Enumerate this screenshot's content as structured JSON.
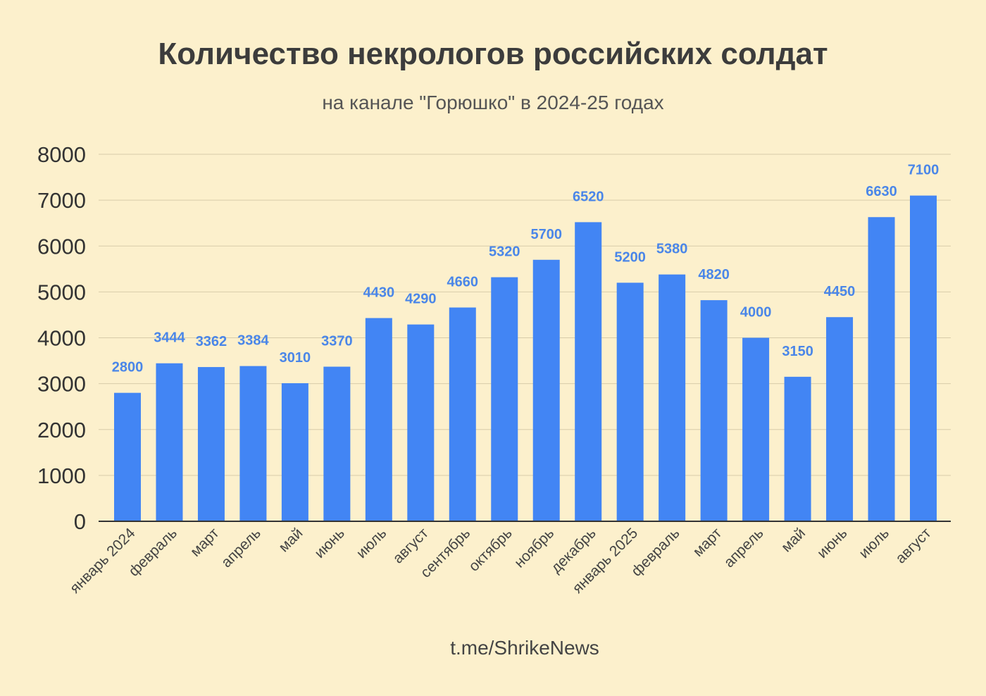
{
  "title": "Количество некрологов российских солдат",
  "subtitle": "на канале \"Горюшко\" в 2024-25 годах",
  "footer": "t.me/ShrikeNews",
  "colors": {
    "background": "#fcf0cc",
    "bar": "#4285f4",
    "data_label": "#4a86e8"
  },
  "chart_data": {
    "type": "bar",
    "title": "Количество некрологов российских солдат",
    "subtitle": "на канале \"Горюшко\" в 2024-25 годах",
    "categories": [
      "январь 2024",
      "февраль",
      "март",
      "апрель",
      "май",
      "июнь",
      "июль",
      "август",
      "сентябрь",
      "октябрь",
      "ноябрь",
      "декабрь",
      "январь 2025",
      "февраль",
      "март",
      "апрель",
      "май",
      "июнь",
      "июль",
      "август"
    ],
    "values": [
      2800,
      3444,
      3362,
      3384,
      3010,
      3370,
      4430,
      4290,
      4660,
      5320,
      5700,
      6520,
      5200,
      5380,
      4820,
      4000,
      3150,
      4450,
      6630,
      7100
    ],
    "ylim": [
      0,
      8000
    ],
    "yticks": [
      0,
      1000,
      2000,
      3000,
      4000,
      5000,
      6000,
      7000,
      8000
    ],
    "grid": true,
    "data_labels": true,
    "xlabel": "",
    "ylabel": ""
  }
}
